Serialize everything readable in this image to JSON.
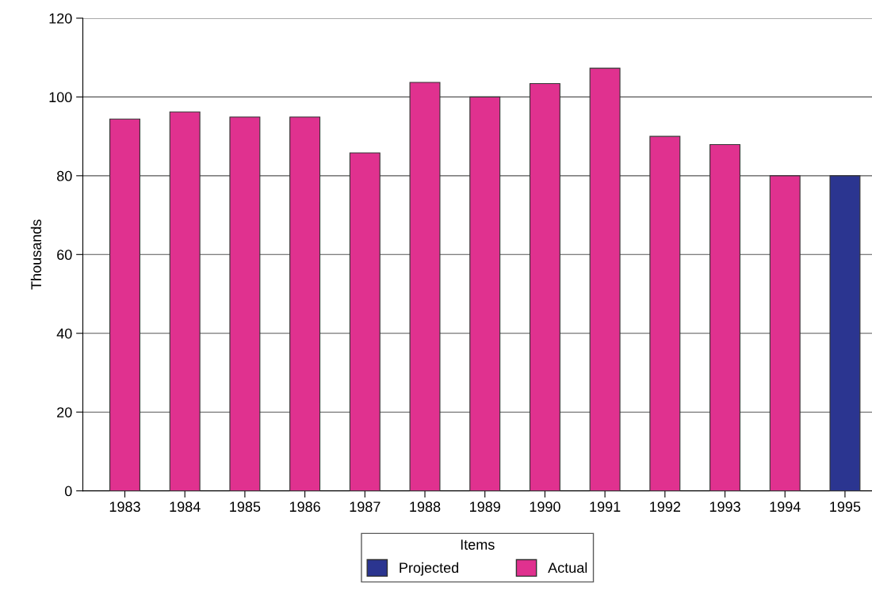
{
  "chart_data": {
    "type": "bar",
    "ylabel": "Thousands",
    "legend_title": "Items",
    "categories": [
      "1983",
      "1984",
      "1985",
      "1986",
      "1987",
      "1988",
      "1989",
      "1990",
      "1991",
      "1992",
      "1993",
      "1994",
      "1995"
    ],
    "series": [
      {
        "name": "Projected",
        "color": "#2b3590",
        "values": [
          null,
          null,
          null,
          null,
          null,
          null,
          null,
          null,
          null,
          null,
          null,
          null,
          80
        ]
      },
      {
        "name": "Actual",
        "color": "#e0318f",
        "values": [
          94.4,
          96.2,
          94.9,
          94.9,
          85.8,
          103.7,
          100,
          103.4,
          107.3,
          90.0,
          87.9,
          80,
          null
        ]
      }
    ],
    "stacked": true,
    "ylim": [
      0,
      120
    ],
    "yticks": [
      0,
      20,
      40,
      60,
      80,
      100,
      120
    ],
    "grid": "y",
    "legend": "bottom"
  }
}
